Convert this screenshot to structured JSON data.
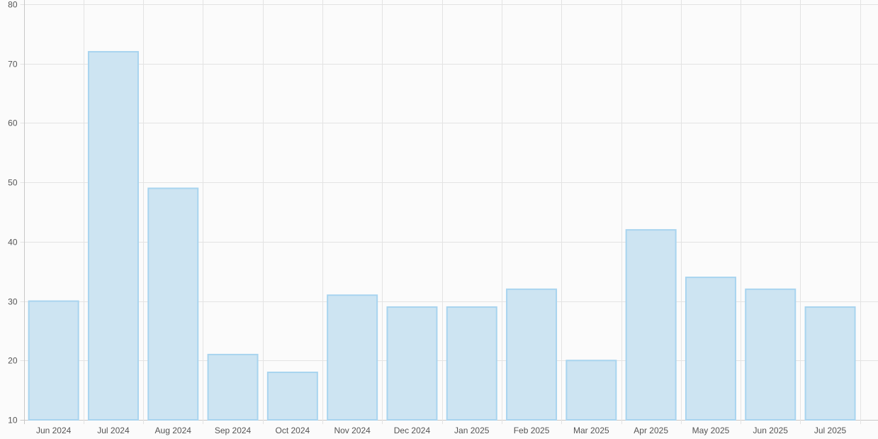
{
  "chart_data": {
    "type": "bar",
    "title": "",
    "xlabel": "",
    "ylabel": "",
    "categories": [
      "Jun 2024",
      "Jul 2024",
      "Aug 2024",
      "Sep 2024",
      "Oct 2024",
      "Nov 2024",
      "Dec 2024",
      "Jan 2025",
      "Feb 2025",
      "Mar 2025",
      "Apr 2025",
      "May 2025",
      "Jun 2025",
      "Jul 2025"
    ],
    "values": [
      30,
      72,
      49,
      21,
      18,
      31,
      29,
      29,
      32,
      20,
      42,
      34,
      32,
      29
    ],
    "ylim": [
      10,
      80
    ],
    "yticks": [
      10,
      20,
      30,
      40,
      50,
      60,
      70,
      80
    ],
    "grid": true,
    "legend": "none",
    "colors": {
      "bar_fill": "#cde4f2",
      "bar_border": "#a8d4ef",
      "grid": "#e3e3e3",
      "axis": "#c8c8c8",
      "background": "#fbfbfb"
    }
  }
}
